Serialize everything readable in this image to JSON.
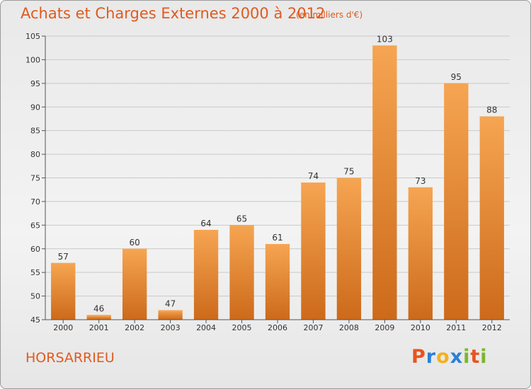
{
  "header": {
    "title": "Achats et Charges Externes 2000 à 2012",
    "unit": "(en milliers d'€)"
  },
  "footer": {
    "commune": "HORSARRIEU",
    "logo": {
      "text": "Proxiti",
      "letters": [
        {
          "ch": "P",
          "color": "#e8541e"
        },
        {
          "ch": "r",
          "color": "#2b7fd8"
        },
        {
          "ch": "o",
          "color": "#f2b21d"
        },
        {
          "ch": "x",
          "color": "#2b7fd8"
        },
        {
          "ch": "i",
          "color": "#79b82a"
        },
        {
          "ch": "t",
          "color": "#e8541e"
        },
        {
          "ch": "i",
          "color": "#79b82a"
        }
      ]
    }
  },
  "colors": {
    "bar_top": "#f6a552",
    "bar_bottom": "#cc6a1a",
    "grid": "#c9c9c9",
    "accent": "#e05a1e"
  },
  "chart_data": {
    "type": "bar",
    "categories": [
      "2000",
      "2001",
      "2002",
      "2003",
      "2004",
      "2005",
      "2006",
      "2007",
      "2008",
      "2009",
      "2010",
      "2011",
      "2012"
    ],
    "values": [
      57,
      46,
      60,
      47,
      64,
      65,
      61,
      74,
      75,
      103,
      73,
      95,
      88
    ],
    "ylim": [
      45,
      105
    ],
    "yticks": [
      45,
      50,
      55,
      60,
      65,
      70,
      75,
      80,
      85,
      90,
      95,
      100,
      105
    ],
    "grid": true
  }
}
